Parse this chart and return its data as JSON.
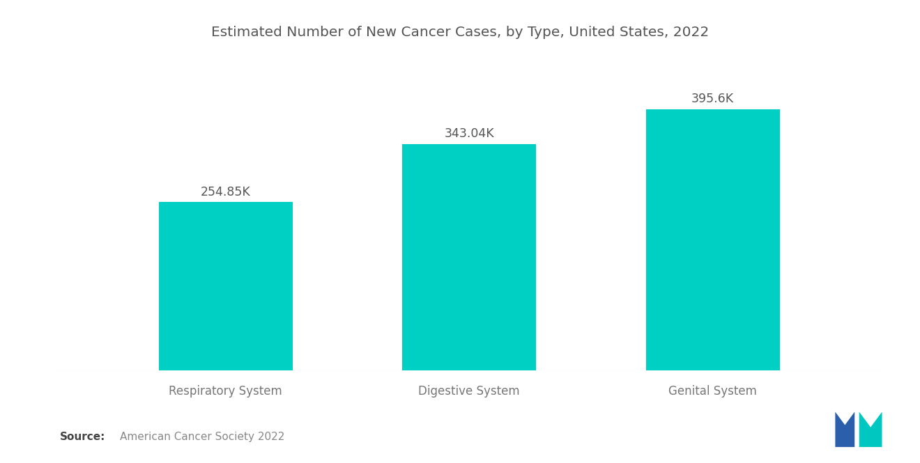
{
  "title": "Estimated Number of New Cancer Cases, by Type, United States, 2022",
  "categories": [
    "Respiratory System",
    "Digestive System",
    "Genital System"
  ],
  "values": [
    254.85,
    343.04,
    395.6
  ],
  "labels": [
    "254.85K",
    "343.04K",
    "395.6K"
  ],
  "bar_color": "#00D0C4",
  "background_color": "#ffffff",
  "title_fontsize": 14.5,
  "label_fontsize": 12.5,
  "tick_fontsize": 12,
  "source_text": "American Cancer Society 2022",
  "source_bold": "Source:",
  "ylim": [
    0,
    470
  ],
  "bar_width": 0.55,
  "title_color": "#555555",
  "tick_color": "#777777",
  "label_color": "#555555",
  "source_bold_color": "#444444",
  "source_text_color": "#888888",
  "logo_navy": "#2B5FAC",
  "logo_teal": "#00C8C0"
}
